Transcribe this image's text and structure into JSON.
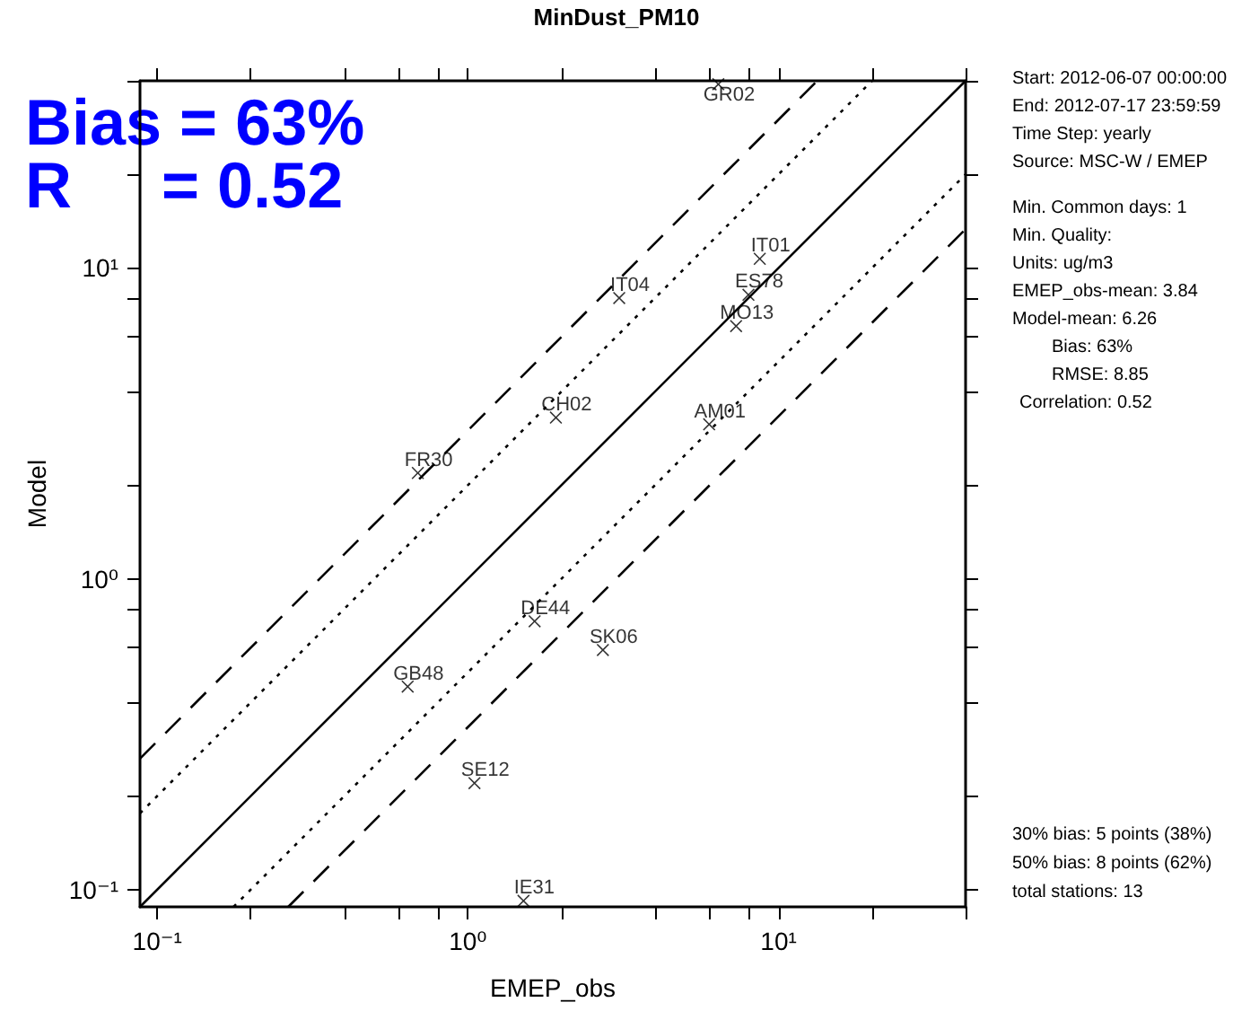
{
  "chart_data": {
    "type": "scatter",
    "title": "MinDust_PM10",
    "xlabel": "EMEP_obs",
    "ylabel": "Model",
    "log": "xy",
    "grid": false,
    "xlim": [
      0.088,
      40
    ],
    "ylim": [
      0.088,
      40
    ],
    "xticks": [
      {
        "value": 0.1,
        "label": "10⁻¹"
      },
      {
        "value": 0.2,
        "label": null
      },
      {
        "value": 0.4,
        "label": null
      },
      {
        "value": 0.6,
        "label": null
      },
      {
        "value": 0.8,
        "label": null
      },
      {
        "value": 1,
        "label": "10⁰"
      },
      {
        "value": 2,
        "label": null
      },
      {
        "value": 4,
        "label": null
      },
      {
        "value": 6,
        "label": null
      },
      {
        "value": 8,
        "label": null
      },
      {
        "value": 10,
        "label": "10¹"
      },
      {
        "value": 20,
        "label": null
      },
      {
        "value": 40,
        "label": null
      }
    ],
    "yticks": [
      {
        "value": 0.1,
        "label": "10⁻¹"
      },
      {
        "value": 0.2,
        "label": null
      },
      {
        "value": 0.4,
        "label": null
      },
      {
        "value": 0.6,
        "label": null
      },
      {
        "value": 0.8,
        "label": null
      },
      {
        "value": 1,
        "label": "10⁰"
      },
      {
        "value": 2,
        "label": null
      },
      {
        "value": 4,
        "label": null
      },
      {
        "value": 6,
        "label": null
      },
      {
        "value": 8,
        "label": null
      },
      {
        "value": 10,
        "label": "10¹"
      },
      {
        "value": 20,
        "label": null
      },
      {
        "value": 40,
        "label": null
      }
    ],
    "series": [
      {
        "color": "#000000",
        "marker": "cross",
        "x": [
          6.4,
          8.7,
          3.07,
          8.0,
          7.3,
          1.92,
          5.98,
          0.69,
          1.64,
          2.72,
          0.64,
          1.05,
          1.51
        ],
        "values": [
          39,
          10.7,
          8.0,
          8.2,
          6.5,
          3.3,
          3.14,
          2.19,
          0.73,
          0.59,
          0.45,
          0.22,
          0.092
        ],
        "value_labels": [
          "GR02",
          "IT01",
          "IT04",
          "ES78",
          "MO13",
          "CH02",
          "AM01",
          "FR30",
          "DE44",
          "SK06",
          "GB48",
          "SE12",
          "IE31"
        ]
      },
      {
        "type": "line",
        "color": "#000000",
        "marker": "none",
        "line_style": "solid",
        "x": [
          0.088,
          40
        ],
        "values": [
          0.088,
          40
        ]
      },
      {
        "type": "line",
        "color": "#000000",
        "marker": "none",
        "line_style": "dotted",
        "x": [
          0.088,
          20
        ],
        "values": [
          0.176,
          40
        ]
      },
      {
        "type": "line",
        "color": "#000000",
        "marker": "none",
        "line_style": "dotted",
        "x": [
          0.176,
          40
        ],
        "values": [
          0.088,
          20
        ]
      },
      {
        "type": "line",
        "color": "#000000",
        "marker": "none",
        "line_style": "dashed",
        "x": [
          0.088,
          13.33
        ],
        "values": [
          0.264,
          40
        ]
      },
      {
        "type": "line",
        "color": "#000000",
        "marker": "none",
        "line_style": "dashed",
        "x": [
          0.264,
          40
        ],
        "values": [
          0.088,
          13.33
        ]
      }
    ],
    "annotations": [
      "Bias = 63%",
      "R     = 0.52",
      "Start: 2012-06-07 00:00:00",
      "End: 2012-07-17 23:59:59",
      "Time Step: yearly",
      "Source: MSC-W / EMEP",
      "Min. Common days: 1",
      "Min. Quality:",
      "Units: ug/m3",
      "EMEP_obs-mean: 3.84",
      "Model-mean: 6.26",
      "Bias: 63%",
      "RMSE: 8.85",
      "Correlation: 0.52",
      "30% bias: 5 points (38%)",
      "50% bias: 8 points (62%)",
      "total stations: 13"
    ]
  }
}
